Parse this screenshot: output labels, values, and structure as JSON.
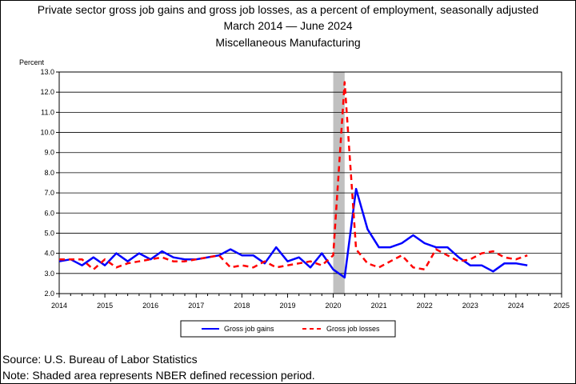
{
  "header": {
    "title_line1": "Private sector gross job gains and gross job losses, as a percent of employment, seasonally adjusted",
    "title_line2": "March 2014 — June 2024",
    "title_line3": "Miscellaneous Manufacturing"
  },
  "footer": {
    "source": "Source: U.S. Bureau of Labor Statistics",
    "note": "Note: Shaded area represents NBER defined recession period."
  },
  "chart_data": {
    "type": "line",
    "ylabel": "Percent",
    "ylim": [
      2.0,
      13.0
    ],
    "xlim": [
      2014,
      2025
    ],
    "yticks": [
      "2.0",
      "3.0",
      "4.0",
      "5.0",
      "6.0",
      "7.0",
      "8.0",
      "9.0",
      "10.0",
      "11.0",
      "12.0",
      "13.0"
    ],
    "xticks": [
      "2014",
      "2015",
      "2016",
      "2017",
      "2018",
      "2019",
      "2020",
      "2021",
      "2022",
      "2023",
      "2024",
      "2025"
    ],
    "grid": "horizontal",
    "legend_position": "bottom",
    "recession": {
      "start": 2020.0,
      "end": 2020.25
    },
    "colors": {
      "gains": "#0000ff",
      "losses": "#ff0000",
      "recession": "#c0c0c0"
    },
    "series": [
      {
        "name": "Gross job gains",
        "key": "gains",
        "style": "solid",
        "points": [
          [
            2014.0,
            3.6
          ],
          [
            2014.25,
            3.7
          ],
          [
            2014.5,
            3.4
          ],
          [
            2014.75,
            3.8
          ],
          [
            2015.0,
            3.4
          ],
          [
            2015.25,
            4.0
          ],
          [
            2015.5,
            3.6
          ],
          [
            2015.75,
            4.0
          ],
          [
            2016.0,
            3.7
          ],
          [
            2016.25,
            4.1
          ],
          [
            2016.5,
            3.8
          ],
          [
            2016.75,
            3.7
          ],
          [
            2017.0,
            3.7
          ],
          [
            2017.25,
            3.8
          ],
          [
            2017.5,
            3.9
          ],
          [
            2017.75,
            4.2
          ],
          [
            2018.0,
            3.9
          ],
          [
            2018.25,
            3.9
          ],
          [
            2018.5,
            3.5
          ],
          [
            2018.75,
            4.3
          ],
          [
            2019.0,
            3.6
          ],
          [
            2019.25,
            3.8
          ],
          [
            2019.5,
            3.3
          ],
          [
            2019.75,
            4.0
          ],
          [
            2020.0,
            3.2
          ],
          [
            2020.25,
            2.8
          ],
          [
            2020.5,
            7.2
          ],
          [
            2020.75,
            5.2
          ],
          [
            2021.0,
            4.3
          ],
          [
            2021.25,
            4.3
          ],
          [
            2021.5,
            4.5
          ],
          [
            2021.75,
            4.9
          ],
          [
            2022.0,
            4.5
          ],
          [
            2022.25,
            4.3
          ],
          [
            2022.5,
            4.3
          ],
          [
            2022.75,
            3.8
          ],
          [
            2023.0,
            3.4
          ],
          [
            2023.25,
            3.4
          ],
          [
            2023.5,
            3.1
          ],
          [
            2023.75,
            3.5
          ],
          [
            2024.0,
            3.5
          ],
          [
            2024.25,
            3.4
          ]
        ]
      },
      {
        "name": "Gross job losses",
        "key": "losses",
        "style": "dashed",
        "points": [
          [
            2014.0,
            3.7
          ],
          [
            2014.25,
            3.7
          ],
          [
            2014.5,
            3.7
          ],
          [
            2014.75,
            3.2
          ],
          [
            2015.0,
            3.7
          ],
          [
            2015.25,
            3.3
          ],
          [
            2015.5,
            3.5
          ],
          [
            2015.75,
            3.6
          ],
          [
            2016.0,
            3.7
          ],
          [
            2016.25,
            3.8
          ],
          [
            2016.5,
            3.6
          ],
          [
            2016.75,
            3.6
          ],
          [
            2017.0,
            3.7
          ],
          [
            2017.25,
            3.8
          ],
          [
            2017.5,
            3.9
          ],
          [
            2017.75,
            3.3
          ],
          [
            2018.0,
            3.4
          ],
          [
            2018.25,
            3.3
          ],
          [
            2018.5,
            3.6
          ],
          [
            2018.75,
            3.3
          ],
          [
            2019.0,
            3.4
          ],
          [
            2019.25,
            3.5
          ],
          [
            2019.5,
            3.6
          ],
          [
            2019.75,
            3.4
          ],
          [
            2020.0,
            3.9
          ],
          [
            2020.25,
            12.5
          ],
          [
            2020.5,
            4.2
          ],
          [
            2020.75,
            3.5
          ],
          [
            2021.0,
            3.3
          ],
          [
            2021.25,
            3.6
          ],
          [
            2021.5,
            3.9
          ],
          [
            2021.75,
            3.3
          ],
          [
            2022.0,
            3.2
          ],
          [
            2022.25,
            4.2
          ],
          [
            2022.5,
            3.9
          ],
          [
            2022.75,
            3.6
          ],
          [
            2023.0,
            3.7
          ],
          [
            2023.25,
            4.0
          ],
          [
            2023.5,
            4.1
          ],
          [
            2023.75,
            3.8
          ],
          [
            2024.0,
            3.7
          ],
          [
            2024.25,
            3.9
          ]
        ]
      }
    ]
  }
}
